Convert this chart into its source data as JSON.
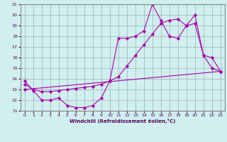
{
  "xlabel": "Windchill (Refroidissement éolien,°C)",
  "background_color": "#cff0ee",
  "grid_color": "#9999aa",
  "line_color": "#aa00aa",
  "xlim": [
    -0.5,
    23.5
  ],
  "ylim": [
    11,
    21
  ],
  "xticks": [
    0,
    1,
    2,
    3,
    4,
    5,
    6,
    7,
    8,
    9,
    10,
    11,
    12,
    13,
    14,
    15,
    16,
    17,
    18,
    19,
    20,
    21,
    22,
    23
  ],
  "yticks": [
    11,
    12,
    13,
    14,
    15,
    16,
    17,
    18,
    19,
    20,
    21
  ],
  "line1_x": [
    0,
    1,
    2,
    3,
    4,
    5,
    6,
    7,
    8,
    9,
    10,
    11,
    12,
    13,
    14,
    15,
    16,
    17,
    18,
    19,
    20,
    21,
    22,
    23
  ],
  "line1_y": [
    13.8,
    12.9,
    12.0,
    12.0,
    12.2,
    11.5,
    11.3,
    11.3,
    11.5,
    12.2,
    13.8,
    17.8,
    17.8,
    18.0,
    18.5,
    21.0,
    19.5,
    18.0,
    17.8,
    19.0,
    20.0,
    16.2,
    16.0,
    14.7
  ],
  "line2_x": [
    0,
    1,
    2,
    3,
    4,
    5,
    6,
    7,
    8,
    9,
    10,
    11,
    12,
    13,
    14,
    15,
    16,
    17,
    18,
    19,
    20,
    21,
    22,
    23
  ],
  "line2_y": [
    13.5,
    13.0,
    12.8,
    12.8,
    12.9,
    13.0,
    13.1,
    13.2,
    13.3,
    13.5,
    13.8,
    14.2,
    15.2,
    16.2,
    17.2,
    18.2,
    19.2,
    19.5,
    19.6,
    19.0,
    19.2,
    16.2,
    15.0,
    14.7
  ],
  "line3_x": [
    0,
    23
  ],
  "line3_y": [
    13.0,
    14.7
  ]
}
